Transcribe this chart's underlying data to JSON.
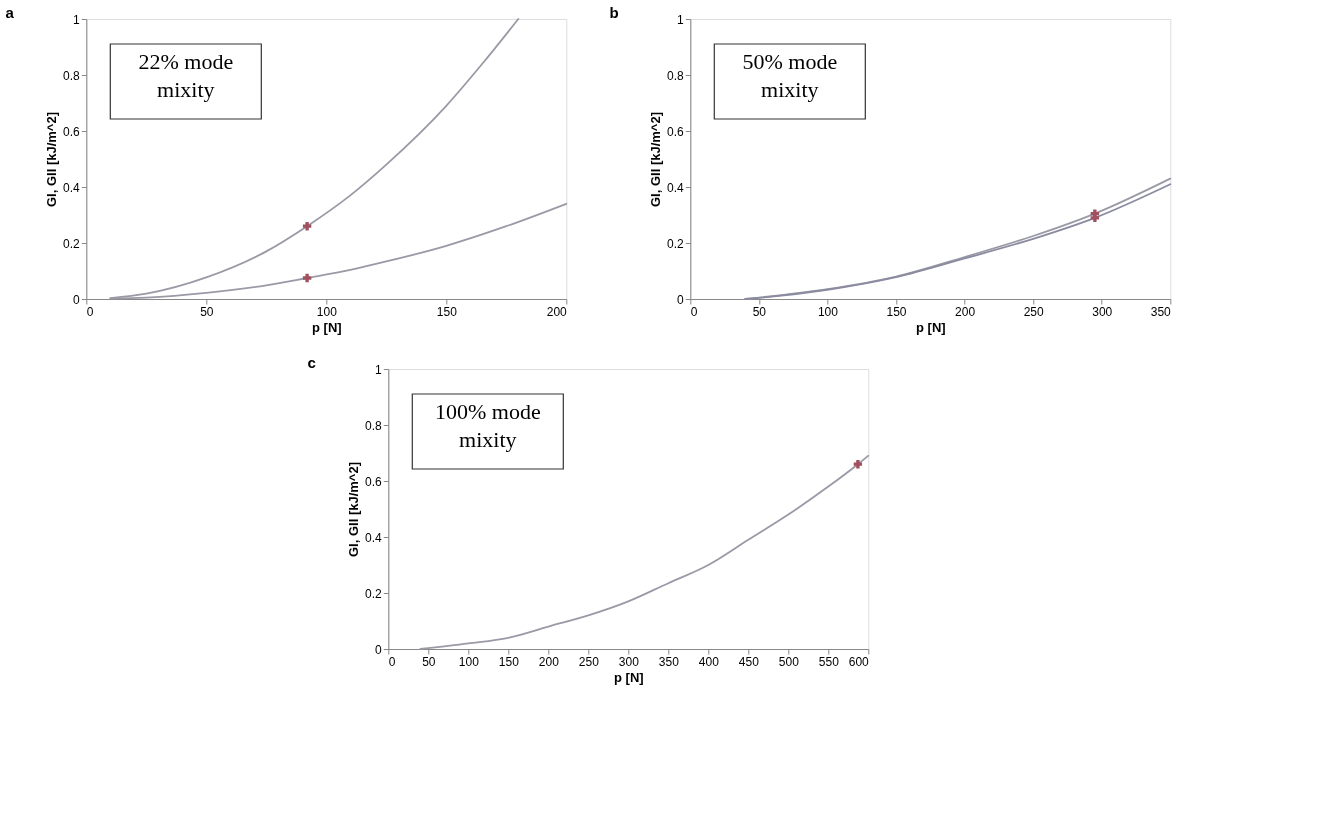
{
  "chart_data": [
    {
      "type": "line",
      "title": "a",
      "xlabel": "p  [N]",
      "ylabel": "GI, GII [kJ/m^2]",
      "xlim": [
        0,
        200
      ],
      "xticks": [
        0,
        50,
        100,
        150,
        200
      ],
      "ylim": [
        0,
        1
      ],
      "yticks": [
        0,
        0.2,
        0.4,
        0.6,
        0.8,
        1
      ],
      "grid": false,
      "annotations": [
        "22% mode mixity"
      ],
      "series": [
        {
          "color": "#9a9aa6",
          "x": [
            10,
            25,
            50,
            75,
            92,
            110,
            125,
            150,
            165,
            180
          ],
          "values": [
            0.003,
            0.019,
            0.077,
            0.17,
            0.26,
            0.37,
            0.48,
            0.69,
            0.84,
            1.0
          ]
        },
        {
          "color": "#9a9aa6",
          "x": [
            10,
            25,
            50,
            75,
            92,
            110,
            125,
            150,
            175,
            200
          ],
          "values": [
            0.001,
            0.005,
            0.022,
            0.049,
            0.075,
            0.104,
            0.134,
            0.19,
            0.26,
            0.34
          ]
        },
        {
          "type": "scatter",
          "marker": "cross",
          "color": "#a0505e",
          "x": [
            92,
            92
          ],
          "values": [
            0.26,
            0.075
          ]
        }
      ]
    },
    {
      "type": "line",
      "title": "b",
      "xlabel": "p  [N]",
      "ylabel": "GI, GII [kJ/m^2]",
      "xlim": [
        0,
        350
      ],
      "xticks": [
        0,
        50,
        100,
        150,
        200,
        250,
        300,
        350
      ],
      "ylim": [
        0,
        1
      ],
      "yticks": [
        0,
        0.2,
        0.4,
        0.6,
        0.8,
        1
      ],
      "grid": false,
      "annotations": [
        "50% mode mixity"
      ],
      "series": [
        {
          "color": "#9a9aa6",
          "x": [
            40,
            50,
            100,
            150,
            200,
            250,
            295,
            350
          ],
          "values": [
            0.0,
            0.005,
            0.035,
            0.08,
            0.15,
            0.225,
            0.305,
            0.43
          ]
        },
        {
          "color": "#8a8aa0",
          "x": [
            40,
            50,
            100,
            150,
            200,
            250,
            295,
            350
          ],
          "values": [
            0.0,
            0.004,
            0.033,
            0.078,
            0.145,
            0.215,
            0.29,
            0.41
          ]
        },
        {
          "type": "scatter",
          "marker": "cross",
          "color": "#a0505e",
          "x": [
            295,
            295
          ],
          "values": [
            0.305,
            0.29
          ]
        }
      ]
    },
    {
      "type": "line",
      "title": "c",
      "xlabel": "p  [N]",
      "ylabel": "GI, GII [kJ/m^2]",
      "xlim": [
        0,
        600
      ],
      "xticks": [
        0,
        50,
        100,
        150,
        200,
        250,
        300,
        350,
        400,
        450,
        500,
        550,
        600
      ],
      "ylim": [
        0,
        1
      ],
      "yticks": [
        0,
        0.2,
        0.4,
        0.6,
        0.8,
        1
      ],
      "grid": false,
      "annotations": [
        "100% mode mixity"
      ],
      "series": [
        {
          "color": "#9a9aa6",
          "x": [
            40,
            100,
            150,
            200,
            250,
            300,
            350,
            400,
            450,
            500,
            550,
            587,
            600
          ],
          "values": [
            0.0,
            0.02,
            0.04,
            0.08,
            0.12,
            0.17,
            0.235,
            0.3,
            0.39,
            0.48,
            0.58,
            0.66,
            0.69
          ]
        },
        {
          "type": "scatter",
          "marker": "cross",
          "color": "#a0505e",
          "x": [
            587
          ],
          "values": [
            0.66
          ]
        }
      ]
    }
  ]
}
